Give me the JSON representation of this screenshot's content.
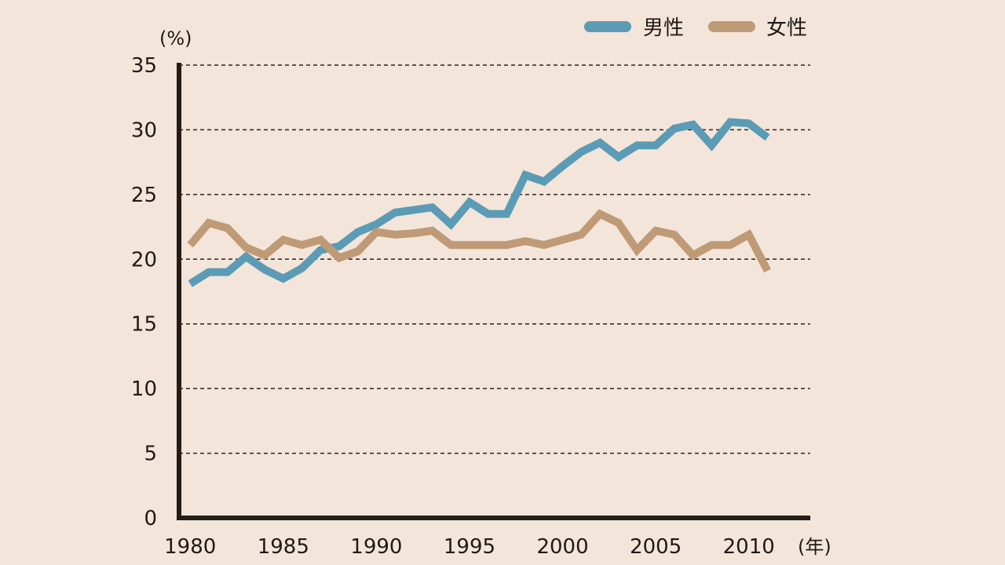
{
  "chart_data": {
    "type": "line",
    "y_unit_label": "(%)",
    "x_unit_label": "(年)",
    "ylim": [
      0,
      35
    ],
    "y_ticks": [
      0,
      5,
      10,
      15,
      20,
      25,
      30,
      35
    ],
    "xlim": [
      1979.4,
      2013.3
    ],
    "x_ticks": [
      1980,
      1985,
      1990,
      1995,
      2000,
      2005,
      2010
    ],
    "grid": true,
    "legend_position": "top-right",
    "series": [
      {
        "name": "男性",
        "color": "#5b9bb5",
        "x": [
          1980,
          1981,
          1982,
          1983,
          1984,
          1985,
          1986,
          1987,
          1988,
          1989,
          1990,
          1991,
          1992,
          1993,
          1994,
          1995,
          1996,
          1997,
          1998,
          1999,
          2000,
          2001,
          2002,
          2003,
          2004,
          2005,
          2006,
          2007,
          2008,
          2009,
          2010,
          2011
        ],
        "values": [
          18.1,
          19.0,
          19.0,
          20.2,
          19.2,
          18.5,
          19.3,
          20.7,
          21.0,
          22.1,
          22.7,
          23.6,
          23.8,
          24.0,
          22.7,
          24.4,
          23.5,
          23.5,
          26.5,
          26.0,
          27.2,
          28.3,
          29.0,
          27.9,
          28.8,
          28.8,
          30.1,
          30.4,
          28.8,
          30.6,
          30.5,
          29.4
        ]
      },
      {
        "name": "女性",
        "color": "#bf9a76",
        "x": [
          1980,
          1981,
          1982,
          1983,
          1984,
          1985,
          1986,
          1987,
          1988,
          1989,
          1990,
          1991,
          1992,
          1993,
          1994,
          1995,
          1996,
          1997,
          1998,
          1999,
          2000,
          2001,
          2002,
          2003,
          2004,
          2005,
          2006,
          2007,
          2008,
          2009,
          2010,
          2011
        ],
        "values": [
          21.1,
          22.8,
          22.4,
          20.9,
          20.3,
          21.5,
          21.1,
          21.5,
          20.1,
          20.6,
          22.1,
          21.9,
          22.0,
          22.2,
          21.1,
          21.1,
          21.1,
          21.1,
          21.4,
          21.1,
          21.5,
          21.9,
          23.5,
          22.8,
          20.7,
          22.2,
          21.9,
          20.3,
          21.1,
          21.1,
          21.9,
          19.1
        ]
      }
    ]
  }
}
